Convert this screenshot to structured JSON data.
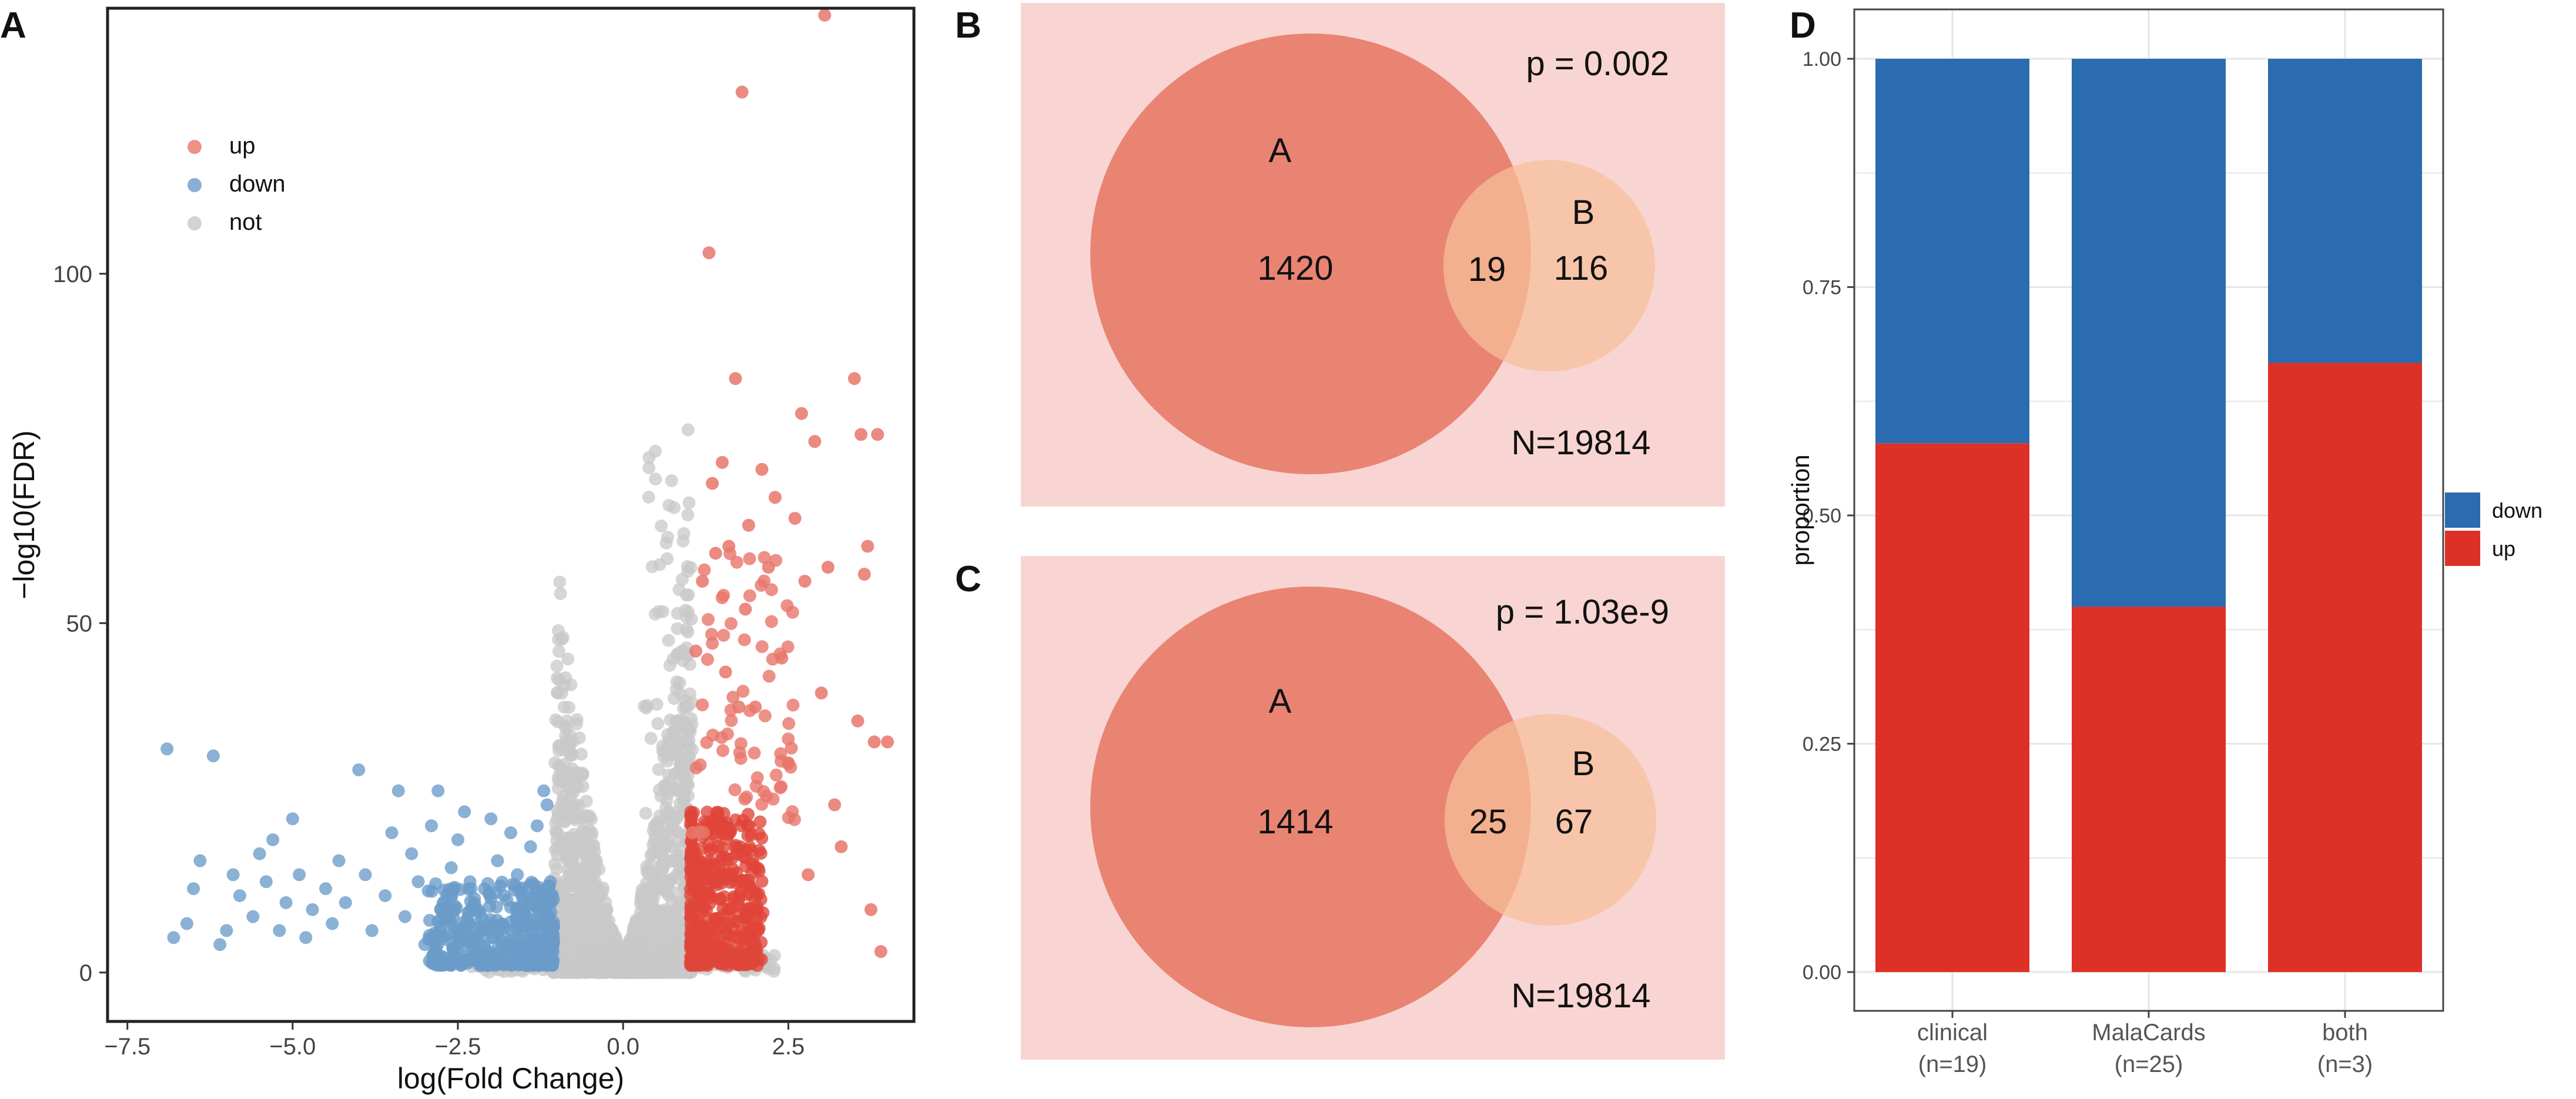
{
  "panels": {
    "A": {
      "label": "A"
    },
    "B": {
      "label": "B"
    },
    "C": {
      "label": "C"
    },
    "D": {
      "label": "D"
    }
  },
  "colors": {
    "up": "#e8766a",
    "down": "#6a9bc9",
    "not": "#c8c8c8",
    "venn_bg": "#f8d5d2",
    "venn_a": "#e8806e",
    "venn_b": "#f6c09a",
    "bar_up": "#dd3127",
    "bar_down": "#2b6bb0",
    "grid": "#e6e6e6"
  },
  "chart_data": [
    {
      "type": "scatter",
      "panel": "A",
      "title": "",
      "xlabel": "log(Fold Change)",
      "ylabel": "−log10(FDR)",
      "xlim": [
        -7.8,
        4.4
      ],
      "ylim": [
        -7,
        138
      ],
      "xticks": [
        -7.5,
        -5.0,
        -2.5,
        0.0,
        2.5
      ],
      "xtick_labels": [
        "−7.5",
        "−5.0",
        "−2.5",
        "0.0",
        "2.5"
      ],
      "yticks": [
        0,
        50,
        100
      ],
      "ytick_labels": [
        "0",
        "50",
        "100"
      ],
      "legend": {
        "placement": "top-left",
        "entries": [
          "up",
          "down",
          "not"
        ]
      },
      "series": [
        {
          "name": "not",
          "description": "non-significant genes (dense grey cloud)"
        },
        {
          "name": "down",
          "points": [
            [
              -6.9,
              32
            ],
            [
              -6.8,
              5
            ],
            [
              -6.6,
              7
            ],
            [
              -6.5,
              12
            ],
            [
              -6.4,
              16
            ],
            [
              -6.2,
              31
            ],
            [
              -6.1,
              4
            ],
            [
              -6.0,
              6
            ],
            [
              -5.9,
              14
            ],
            [
              -5.8,
              11
            ],
            [
              -5.6,
              8
            ],
            [
              -5.5,
              17
            ],
            [
              -5.4,
              13
            ],
            [
              -5.3,
              19
            ],
            [
              -5.2,
              6
            ],
            [
              -5.1,
              10
            ],
            [
              -5.0,
              22
            ],
            [
              -4.9,
              14
            ],
            [
              -4.8,
              5
            ],
            [
              -4.7,
              9
            ],
            [
              -4.5,
              12
            ],
            [
              -4.4,
              7
            ],
            [
              -4.3,
              16
            ],
            [
              -4.2,
              10
            ],
            [
              -4.0,
              29
            ],
            [
              -3.9,
              14
            ],
            [
              -3.8,
              6
            ],
            [
              -3.6,
              11
            ],
            [
              -3.5,
              20
            ],
            [
              -3.4,
              26
            ],
            [
              -3.3,
              8
            ],
            [
              -3.2,
              17
            ],
            [
              -3.1,
              13
            ],
            [
              -3.0,
              4
            ],
            [
              -2.9,
              21
            ],
            [
              -2.8,
              26
            ],
            [
              -2.7,
              9
            ],
            [
              -2.6,
              15
            ],
            [
              -2.5,
              19
            ],
            [
              -2.4,
              23
            ],
            [
              -2.3,
              12
            ],
            [
              -2.2,
              7
            ],
            [
              -2.0,
              22
            ],
            [
              -1.9,
              16
            ],
            [
              -1.8,
              11
            ],
            [
              -1.7,
              20
            ],
            [
              -1.6,
              14
            ],
            [
              -1.5,
              9
            ],
            [
              -1.4,
              18
            ],
            [
              -1.3,
              21
            ],
            [
              -1.2,
              26
            ],
            [
              -1.15,
              24
            ],
            [
              -1.1,
              13
            ]
          ]
        },
        {
          "name": "up",
          "points": [
            [
              1.05,
              20
            ],
            [
              1.1,
              46
            ],
            [
              1.2,
              56
            ],
            [
              1.3,
              103
            ],
            [
              1.35,
              70
            ],
            [
              1.4,
              60
            ],
            [
              1.5,
              73
            ],
            [
              1.55,
              43
            ],
            [
              1.6,
              61
            ],
            [
              1.7,
              85
            ],
            [
              1.75,
              38
            ],
            [
              1.8,
              126
            ],
            [
              1.85,
              52
            ],
            [
              1.9,
              64
            ],
            [
              2.0,
              38
            ],
            [
              2.1,
              72
            ],
            [
              2.2,
              58
            ],
            [
              2.3,
              68
            ],
            [
              2.4,
              45
            ],
            [
              2.5,
              30
            ],
            [
              2.6,
              65
            ],
            [
              2.7,
              80
            ],
            [
              2.75,
              56
            ],
            [
              2.8,
              14
            ],
            [
              2.9,
              76
            ],
            [
              3.0,
              40
            ],
            [
              3.05,
              137
            ],
            [
              3.1,
              58
            ],
            [
              3.2,
              24
            ],
            [
              3.3,
              18
            ],
            [
              3.5,
              85
            ],
            [
              3.55,
              36
            ],
            [
              3.6,
              77
            ],
            [
              3.7,
              61
            ],
            [
              3.75,
              9
            ],
            [
              3.8,
              33
            ],
            [
              3.85,
              77
            ],
            [
              3.9,
              3
            ],
            [
              4.0,
              33
            ],
            [
              3.65,
              57
            ]
          ]
        }
      ]
    },
    {
      "type": "venn",
      "panel": "B",
      "sets": [
        {
          "name": "A",
          "only": 1420
        },
        {
          "name": "B",
          "only": 116
        }
      ],
      "intersection": 19,
      "p_value_text": "p = 0.002",
      "n_text": "N=19814"
    },
    {
      "type": "venn",
      "panel": "C",
      "sets": [
        {
          "name": "A",
          "only": 1414
        },
        {
          "name": "B",
          "only": 67
        }
      ],
      "intersection": 25,
      "p_value_text": "p = 1.03e-9",
      "n_text": "N=19814"
    },
    {
      "type": "bar",
      "panel": "D",
      "stacked": true,
      "ylabel": "proportion",
      "xlabel": "",
      "ylim": [
        0,
        1
      ],
      "yticks": [
        0.0,
        0.25,
        0.5,
        0.75,
        1.0
      ],
      "ytick_labels": [
        "0.00",
        "0.25",
        "0.50",
        "0.75",
        "1.00"
      ],
      "categories": [
        "clinical",
        "MalaCards",
        "both"
      ],
      "category_sublabels": [
        "(n=19)",
        "(n=25)",
        "(n=3)"
      ],
      "series": [
        {
          "name": "up",
          "values": [
            0.579,
            0.4,
            0.667
          ]
        },
        {
          "name": "down",
          "values": [
            0.421,
            0.6,
            0.333
          ]
        }
      ],
      "legend": {
        "placement": "right",
        "entries": [
          "down",
          "up"
        ]
      }
    }
  ]
}
